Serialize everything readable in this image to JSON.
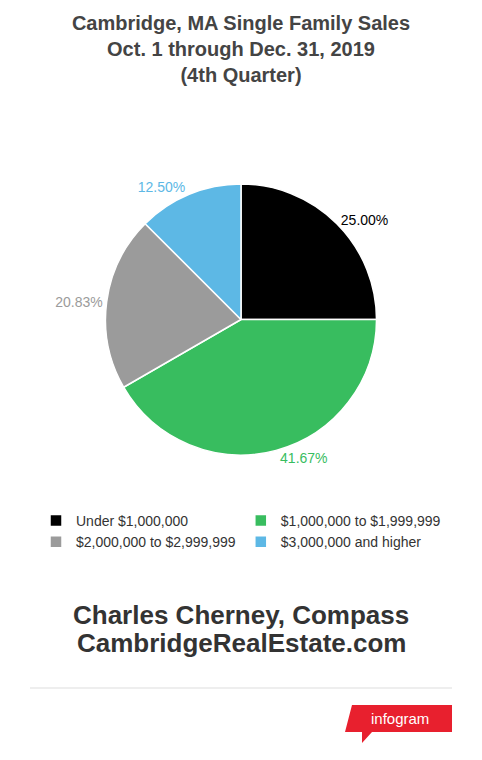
{
  "chart_data": {
    "type": "pie",
    "title": "Cambridge, MA Single Family Sales\nOct. 1 through Dec. 31, 2019\n(4th Quarter)",
    "categories": [
      "Under $1,000,000",
      "$1,000,000 to $1,999,999",
      "$2,000,000 to $2,999,999",
      "$3,000,000 and higher"
    ],
    "values": [
      25.0,
      41.67,
      20.83,
      12.5
    ],
    "value_labels": [
      "25.00%",
      "41.67%",
      "20.83%",
      "12.50%"
    ],
    "colors": [
      "#000000",
      "#38bd5f",
      "#9b9b9b",
      "#5db8e5"
    ],
    "data_labels": true,
    "legend": "bottom",
    "annotations": [
      "Charles Cherney, Compass",
      "CambridgeRealEstate.com",
      "infogram"
    ]
  }
}
